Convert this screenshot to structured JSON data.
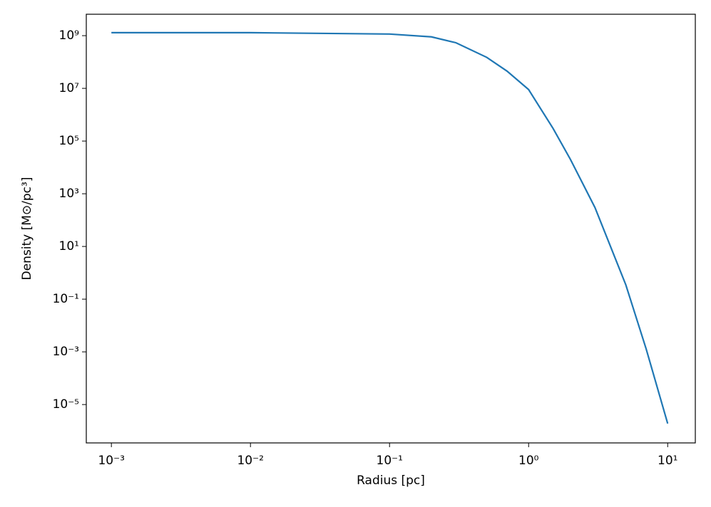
{
  "chart_data": {
    "type": "line",
    "x_label": "Radius [pc]",
    "y_label": "Density [M⊙/pc³]",
    "x": [
      0.001,
      0.01,
      0.1,
      0.2,
      0.3,
      0.5,
      0.7,
      1,
      1.5,
      2,
      3,
      5,
      7,
      10
    ],
    "series": [
      {
        "color": "#1f77b4",
        "values": [
          1300000000,
          1300000000,
          1150000000,
          900000000,
          540000000,
          150000000,
          45000000,
          9000000,
          300000,
          20000,
          300,
          0.35,
          0.0013,
          1.9e-06
        ]
      }
    ],
    "log_x": true,
    "log_y": true,
    "xlim": [
      0.00066,
      15.8
    ],
    "ylim": [
      3.5e-07,
      6500000000
    ],
    "xticks": [
      {
        "value": 0.001,
        "label": "10⁻³"
      },
      {
        "value": 0.01,
        "label": "10⁻²"
      },
      {
        "value": 0.1,
        "label": "10⁻¹"
      },
      {
        "value": 1,
        "label": "10⁰"
      },
      {
        "value": 10,
        "label": "10¹"
      }
    ],
    "yticks": [
      {
        "value": 1e-05,
        "label": "10⁻⁵"
      },
      {
        "value": 0.001,
        "label": "10⁻³"
      },
      {
        "value": 0.1,
        "label": "10⁻¹"
      },
      {
        "value": 10,
        "label": "10¹"
      },
      {
        "value": 1000,
        "label": "10³"
      },
      {
        "value": 100000,
        "label": "10⁵"
      },
      {
        "value": 10000000,
        "label": "10⁷"
      },
      {
        "value": 1000000000,
        "label": "10⁹"
      }
    ]
  }
}
